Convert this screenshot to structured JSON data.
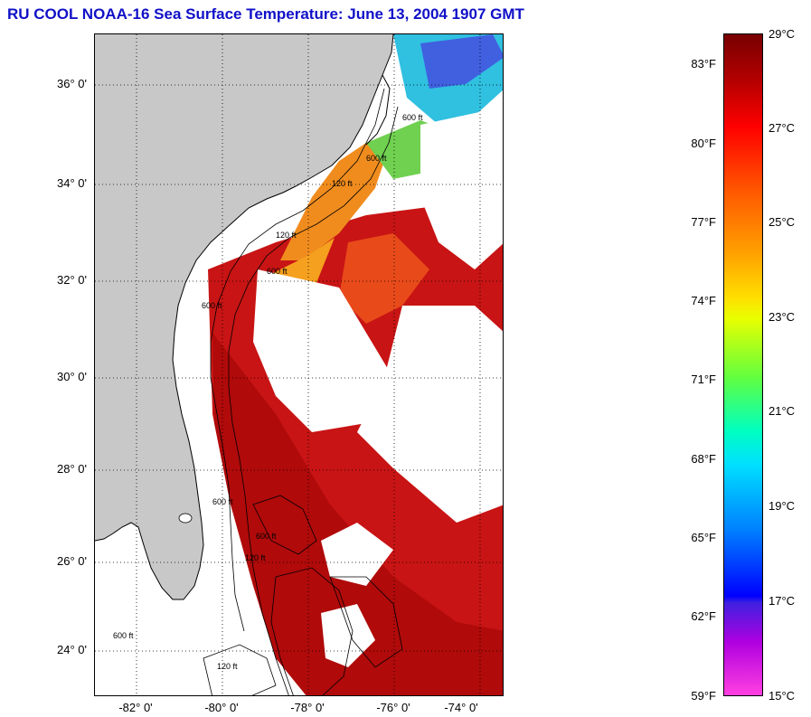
{
  "title": "RU COOL  NOAA-16  Sea Surface Temperature:  June 13, 2004 1907 GMT",
  "map": {
    "lon_range": [
      -83,
      -73.5
    ],
    "lat_range": [
      23,
      37
    ],
    "lat_ticks": [
      "24° 0'",
      "26° 0'",
      "28° 0'",
      "30° 0'",
      "32° 0'",
      "34° 0'",
      "36° 0'"
    ],
    "lon_ticks": [
      "-82° 0'",
      "-80° 0'",
      "-78° 0'",
      "-76° 0'",
      "-74° 0'"
    ],
    "contour_labels": [
      "120 ft",
      "600 ft",
      "600 ft",
      "120 ft",
      "600 ft",
      "600 ft",
      "600 ft",
      "120 ft",
      "600 ft",
      "600 ft",
      "120 ft"
    ],
    "colors": {
      "land": "#c8c8c8",
      "cloud": "#ffffff",
      "warm": "#c81010",
      "hot": "#a00000"
    }
  },
  "colorbar": {
    "range_c": [
      15,
      29
    ],
    "fahrenheit_ticks": [
      "83°F",
      "80°F",
      "77°F",
      "74°F",
      "71°F",
      "68°F",
      "65°F",
      "62°F",
      "59°F"
    ],
    "celsius_ticks": [
      "29°C",
      "27°C",
      "25°C",
      "23°C",
      "21°C",
      "19°C",
      "17°C",
      "15°C"
    ]
  }
}
